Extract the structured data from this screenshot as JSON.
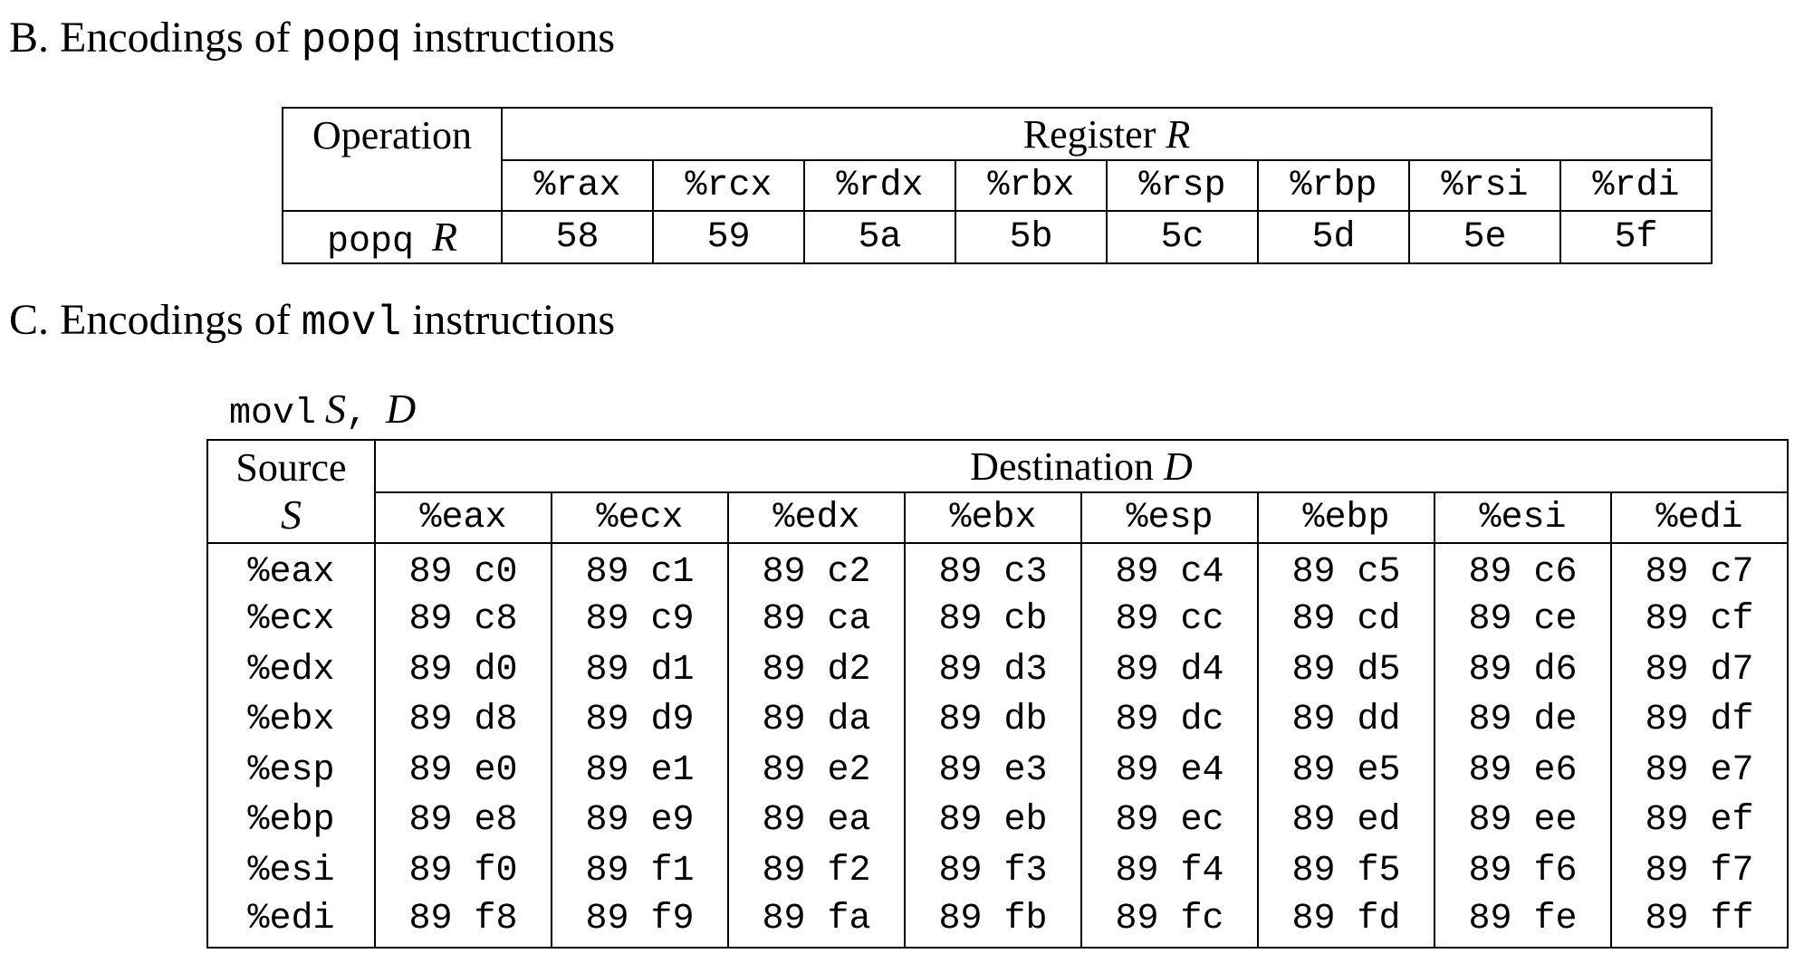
{
  "section_b": {
    "prefix": "B. Encodings of ",
    "code": "popq",
    "suffix": " instructions"
  },
  "popq_table": {
    "operation_header": "Operation",
    "register_header": "Register",
    "register_var": "R",
    "registers": [
      "%rax",
      "%rcx",
      "%rdx",
      "%rbx",
      "%rsp",
      "%rbp",
      "%rsi",
      "%rdi"
    ],
    "row": {
      "op_code": "popq",
      "op_var": "R",
      "encodings": [
        "58",
        "59",
        "5a",
        "5b",
        "5c",
        "5d",
        "5e",
        "5f"
      ]
    }
  },
  "section_c": {
    "prefix": "C. Encodings of ",
    "code": "movl",
    "suffix": " instructions"
  },
  "movl_caption": {
    "code": "movl",
    "src_var": "S",
    "sep": ",",
    "dst_var": "D"
  },
  "movl_table": {
    "source_header": "Source",
    "source_var": "S",
    "destination_header": "Destination",
    "destination_var": "D",
    "destinations": [
      "%eax",
      "%ecx",
      "%edx",
      "%ebx",
      "%esp",
      "%ebp",
      "%esi",
      "%edi"
    ],
    "rows": [
      {
        "source": "%eax",
        "cells": [
          "89 c0",
          "89 c1",
          "89 c2",
          "89 c3",
          "89 c4",
          "89 c5",
          "89 c6",
          "89 c7"
        ]
      },
      {
        "source": "%ecx",
        "cells": [
          "89 c8",
          "89 c9",
          "89 ca",
          "89 cb",
          "89 cc",
          "89 cd",
          "89 ce",
          "89 cf"
        ]
      },
      {
        "source": "%edx",
        "cells": [
          "89 d0",
          "89 d1",
          "89 d2",
          "89 d3",
          "89 d4",
          "89 d5",
          "89 d6",
          "89 d7"
        ]
      },
      {
        "source": "%ebx",
        "cells": [
          "89 d8",
          "89 d9",
          "89 da",
          "89 db",
          "89 dc",
          "89 dd",
          "89 de",
          "89 df"
        ]
      },
      {
        "source": "%esp",
        "cells": [
          "89 e0",
          "89 e1",
          "89 e2",
          "89 e3",
          "89 e4",
          "89 e5",
          "89 e6",
          "89 e7"
        ]
      },
      {
        "source": "%ebp",
        "cells": [
          "89 e8",
          "89 e9",
          "89 ea",
          "89 eb",
          "89 ec",
          "89 ed",
          "89 ee",
          "89 ef"
        ]
      },
      {
        "source": "%esi",
        "cells": [
          "89 f0",
          "89 f1",
          "89 f2",
          "89 f3",
          "89 f4",
          "89 f5",
          "89 f6",
          "89 f7"
        ]
      },
      {
        "source": "%edi",
        "cells": [
          "89 f8",
          "89 f9",
          "89 fa",
          "89 fb",
          "89 fc",
          "89 fd",
          "89 fe",
          "89 ff"
        ]
      }
    ]
  }
}
